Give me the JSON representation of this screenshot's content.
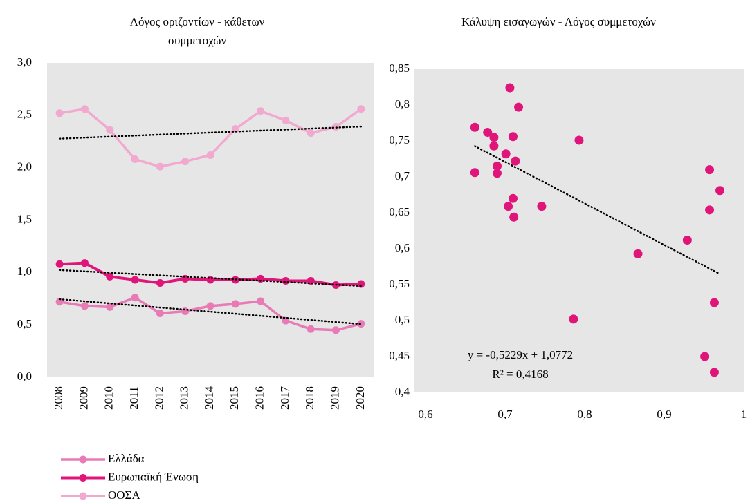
{
  "chart_data": [
    {
      "type": "line",
      "title": [
        "Λόγος οριζοντίων - κάθετων",
        "συμμετοχών"
      ],
      "categories": [
        "2008",
        "2009",
        "2010",
        "2011",
        "2012",
        "2013",
        "2014",
        "2015",
        "2016",
        "2017",
        "2018",
        "2019",
        "2020"
      ],
      "series": [
        {
          "name": "Ελλάδα",
          "color": "#e87ab5",
          "values": [
            0.72,
            0.68,
            0.67,
            0.76,
            0.61,
            0.63,
            0.68,
            0.7,
            0.725,
            0.54,
            0.46,
            0.45,
            0.51
          ]
        },
        {
          "name": "Ευρωπαϊκή Ένωση",
          "color": "#e0157a",
          "values": [
            1.08,
            1.09,
            0.96,
            0.93,
            0.9,
            0.94,
            0.93,
            0.93,
            0.94,
            0.92,
            0.92,
            0.88,
            0.89
          ]
        },
        {
          "name": "ΟΟΣΑ",
          "color": "#f2a9d0",
          "values": [
            2.52,
            2.56,
            2.36,
            2.08,
            2.01,
            2.06,
            2.12,
            2.37,
            2.54,
            2.45,
            2.33,
            2.39,
            2.56
          ]
        }
      ],
      "ylim": [
        0,
        3
      ],
      "yticks": [
        {
          "value": 0,
          "label": "0,0"
        },
        {
          "value": 0.5,
          "label": "0,5"
        },
        {
          "value": 1,
          "label": "1,0"
        },
        {
          "value": 1.5,
          "label": "1,5"
        },
        {
          "value": 2,
          "label": "2,0"
        },
        {
          "value": 2.5,
          "label": "2,5"
        },
        {
          "value": 3,
          "label": "3,0"
        }
      ],
      "trendline": true
    },
    {
      "type": "scatter",
      "title": "Κάλυψη εισαγωγών - Λόγος συμμετοχών",
      "color": "#e0157a",
      "x": [
        0.662,
        0.662,
        0.678,
        0.686,
        0.706,
        0.717,
        0.686,
        0.71,
        0.69,
        0.69,
        0.701,
        0.713,
        0.704,
        0.71,
        0.711,
        0.746,
        0.793,
        0.786,
        0.867,
        0.929,
        0.957,
        0.97,
        0.957,
        0.963,
        0.951,
        0.963
      ],
      "values": [
        0.769,
        0.706,
        0.762,
        0.743,
        0.824,
        0.797,
        0.755,
        0.756,
        0.715,
        0.705,
        0.732,
        0.722,
        0.659,
        0.67,
        0.644,
        0.659,
        0.751,
        0.502,
        0.593,
        0.612,
        0.71,
        0.681,
        0.654,
        0.525,
        0.45,
        0.428
      ],
      "xlim": [
        0.6,
        1
      ],
      "xticks": [
        {
          "value": 0.6,
          "label": "0,6"
        },
        {
          "value": 0.7,
          "label": "0,7"
        },
        {
          "value": 0.8,
          "label": "0,8"
        },
        {
          "value": 0.9,
          "label": "0,9"
        },
        1
      ],
      "ylim": [
        0.4,
        0.85
      ],
      "yticks": [
        {
          "value": 0.4,
          "label": "0,4"
        },
        {
          "value": 0.45,
          "label": "0,45"
        },
        {
          "value": 0.5,
          "label": "0,5"
        },
        {
          "value": 0.55,
          "label": "0,55"
        },
        {
          "value": 0.6,
          "label": "0,6"
        },
        {
          "value": 0.65,
          "label": "0,65"
        },
        {
          "value": 0.7,
          "label": "0,7"
        },
        {
          "value": 0.75,
          "label": "0,75"
        },
        {
          "value": 0.8,
          "label": "0,8"
        },
        {
          "value": 0.85,
          "label": "0,85"
        }
      ],
      "annotations": [
        "y = -0,5229x + 1,0772",
        "R² = 0,4168"
      ],
      "trendline": true
    }
  ]
}
